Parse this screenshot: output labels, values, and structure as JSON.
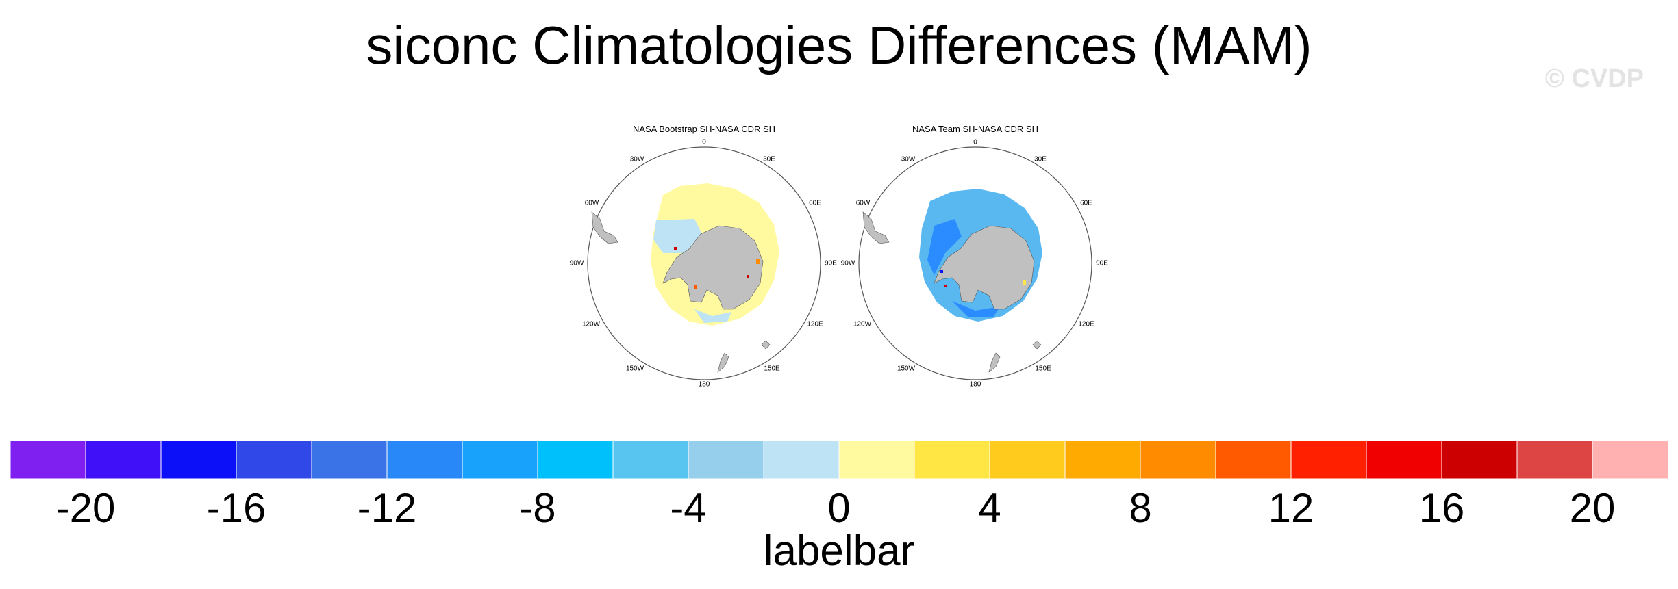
{
  "title": "siconc Climatologies Differences (MAM)",
  "watermark": "© CVDP",
  "maps": [
    {
      "title": "NASA Bootstrap SH-NASA CDR SH",
      "lon_labels": [
        "0",
        "30E",
        "60E",
        "90E",
        "120E",
        "150E",
        "180",
        "150W",
        "120W",
        "90W",
        "60W",
        "30W"
      ],
      "land_color": "#c0c0c0",
      "field_color": "#fffaa0",
      "inner_color": "#bde3f5"
    },
    {
      "title": "NASA Team SH-NASA CDR SH",
      "lon_labels": [
        "0",
        "30E",
        "60E",
        "90E",
        "120E",
        "150E",
        "180",
        "150W",
        "120W",
        "90W",
        "60W",
        "30W"
      ],
      "land_color": "#c0c0c0",
      "field_color": "#5ab8f0",
      "inner_color": "#2a8cff"
    }
  ],
  "colorbar": {
    "colors": [
      "#8020f0",
      "#4010f8",
      "#0c10f8",
      "#3048e8",
      "#3a72e8",
      "#2888f8",
      "#18a2fc",
      "#00c0fc",
      "#58c4f0",
      "#96cfec",
      "#bde3f5",
      "#fffaa0",
      "#ffe645",
      "#ffcc1e",
      "#ffaa00",
      "#ff8c00",
      "#ff5a00",
      "#ff2000",
      "#f00000",
      "#cc0000",
      "#dd4444",
      "#ffb0b0"
    ],
    "ticks": [
      "-20",
      "-16",
      "-12",
      "-8",
      "-4",
      "0",
      "4",
      "8",
      "12",
      "16",
      "20"
    ],
    "label": "labelbar"
  }
}
